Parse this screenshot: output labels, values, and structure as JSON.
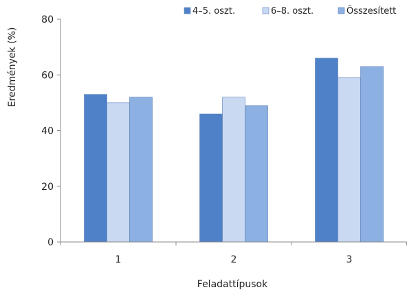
{
  "chart_data": {
    "type": "bar",
    "categories": [
      "1",
      "2",
      "3"
    ],
    "series": [
      {
        "name": "4–5. oszt.",
        "values": [
          53,
          46,
          66
        ],
        "color": "#4F81C9"
      },
      {
        "name": "6–8. oszt.",
        "values": [
          50,
          52,
          59
        ],
        "color": "#C9D9F2"
      },
      {
        "name": "Összesített",
        "values": [
          52,
          49,
          63
        ],
        "color": "#8CB0E2"
      }
    ],
    "xlabel": "Feladattípusok",
    "ylabel": "Eredmények (%)",
    "ylim": [
      0,
      80
    ],
    "yticks": [
      0,
      20,
      40,
      60,
      80
    ],
    "grid": false,
    "legend_position": "top-right"
  }
}
